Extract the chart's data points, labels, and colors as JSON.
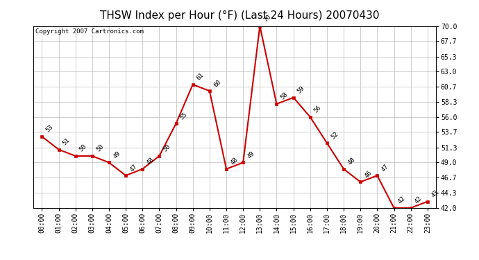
{
  "title": "THSW Index per Hour (°F) (Last 24 Hours) 20070430",
  "copyright": "Copyright 2007 Cartronics.com",
  "hours": [
    "00:00",
    "01:00",
    "02:00",
    "03:00",
    "04:00",
    "05:00",
    "06:00",
    "07:00",
    "08:00",
    "09:00",
    "10:00",
    "11:00",
    "12:00",
    "13:00",
    "14:00",
    "15:00",
    "16:00",
    "17:00",
    "18:00",
    "19:00",
    "20:00",
    "21:00",
    "22:00",
    "23:00"
  ],
  "values": [
    53,
    51,
    50,
    50,
    49,
    47,
    48,
    50,
    55,
    61,
    60,
    48,
    49,
    70,
    58,
    59,
    56,
    52,
    48,
    46,
    47,
    42,
    42,
    43
  ],
  "line_color": "#cc0000",
  "marker_color": "#cc0000",
  "bg_color": "#ffffff",
  "plot_bg_color": "#ffffff",
  "grid_color": "#bbbbbb",
  "ylim_min": 42.0,
  "ylim_max": 70.0,
  "yticks": [
    42.0,
    44.3,
    46.7,
    49.0,
    51.3,
    53.7,
    56.0,
    58.3,
    60.7,
    63.0,
    65.3,
    67.7,
    70.0
  ],
  "title_fontsize": 11,
  "annotation_fontsize": 6.5,
  "copyright_fontsize": 6.5,
  "tick_fontsize": 7,
  "border_color": "#000000"
}
